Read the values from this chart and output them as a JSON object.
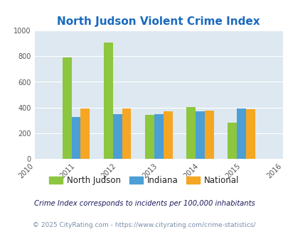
{
  "title": "North Judson Violent Crime Index",
  "years": [
    2011,
    2012,
    2013,
    2014,
    2015
  ],
  "x_ticks": [
    2010,
    2011,
    2012,
    2013,
    2014,
    2015,
    2016
  ],
  "north_judson": [
    790,
    905,
    345,
    405,
    285
  ],
  "indiana": [
    330,
    350,
    350,
    370,
    393
  ],
  "national": [
    393,
    395,
    370,
    379,
    390
  ],
  "colors": {
    "north_judson": "#8dc63f",
    "indiana": "#4b9fd5",
    "national": "#f5a623"
  },
  "ylim": [
    0,
    1000
  ],
  "yticks": [
    0,
    200,
    400,
    600,
    800,
    1000
  ],
  "bg_color": "#dde8f0",
  "title_color": "#1a6abf",
  "legend_labels": [
    "North Judson",
    "Indiana",
    "National"
  ],
  "footnote1": "Crime Index corresponds to incidents per 100,000 inhabitants",
  "footnote2": "© 2025 CityRating.com - https://www.cityrating.com/crime-statistics/",
  "bar_width": 0.22
}
